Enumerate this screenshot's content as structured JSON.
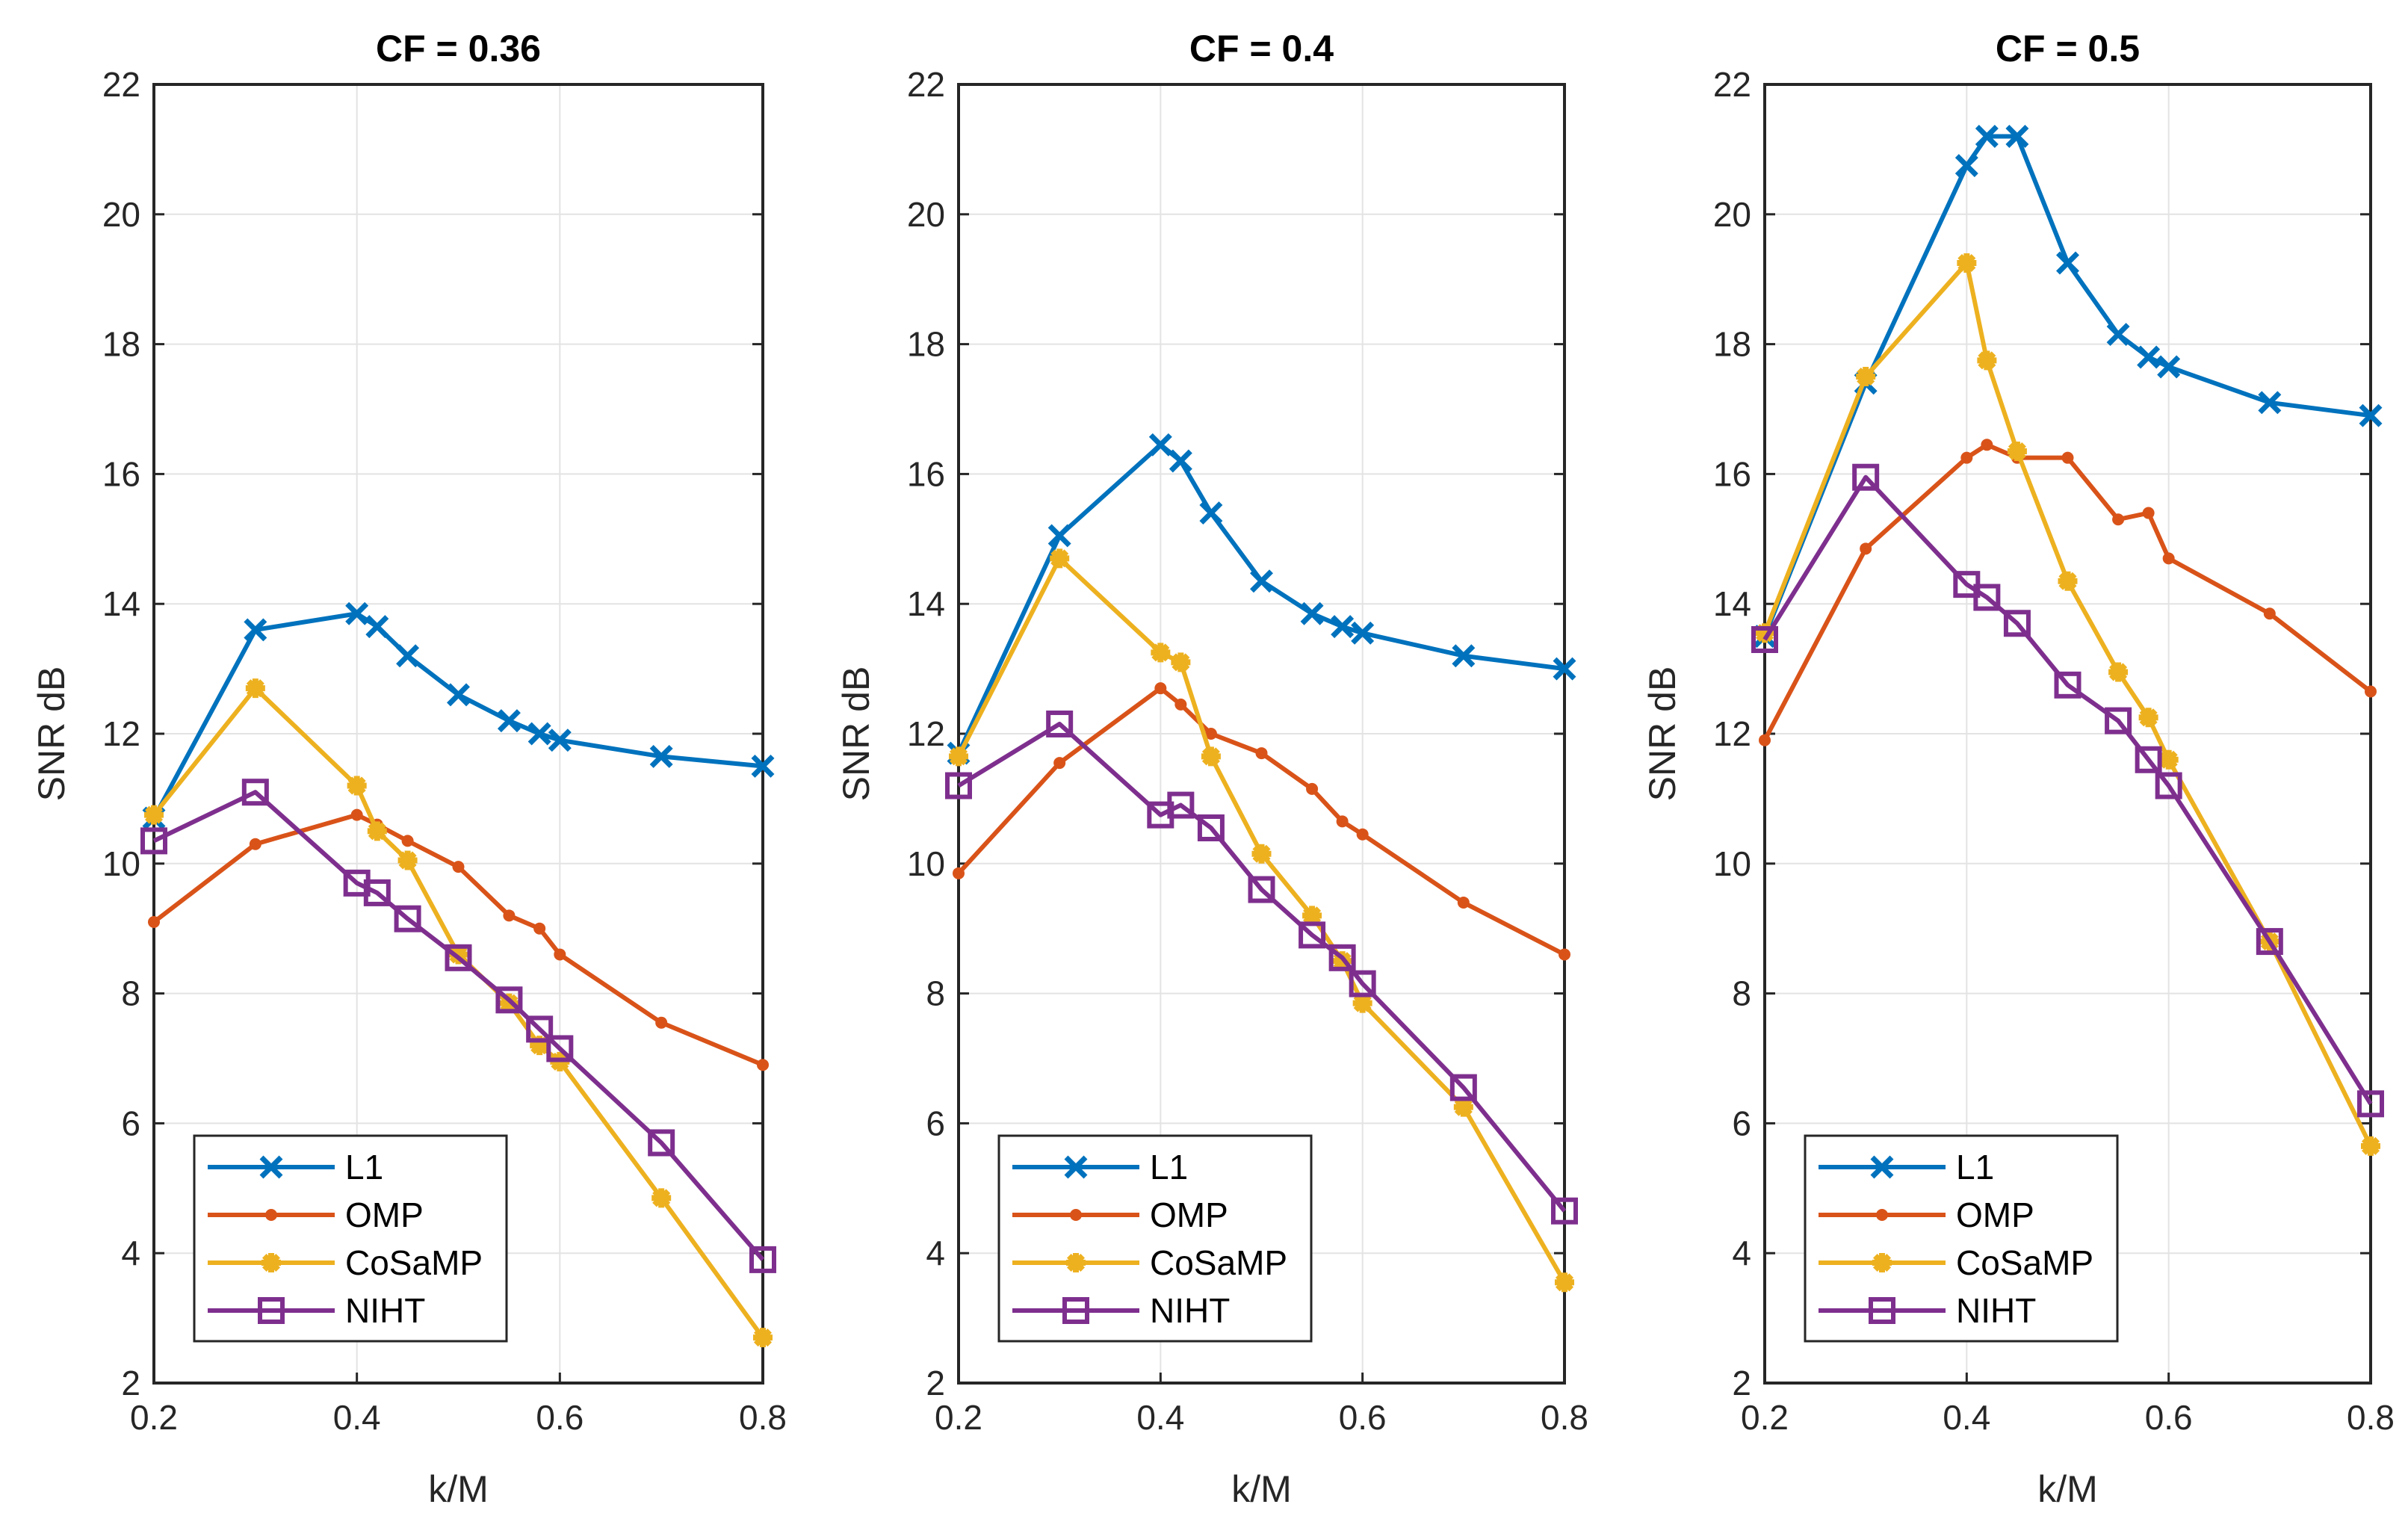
{
  "chart_data": [
    {
      "type": "line",
      "title": "CF = 0.36",
      "xlabel": "k/M",
      "ylabel": "SNR dB",
      "xlim": [
        0.2,
        0.8
      ],
      "ylim": [
        2,
        22
      ],
      "xticks": [
        "0.2",
        "0.4",
        "0.6",
        "0.8"
      ],
      "yticks": [
        "2",
        "4",
        "6",
        "8",
        "10",
        "12",
        "14",
        "16",
        "18",
        "20",
        "22"
      ],
      "grid": true,
      "legend_position": "bottom-left",
      "x": [
        0.2,
        0.3,
        0.4,
        0.42,
        0.45,
        0.5,
        0.55,
        0.58,
        0.6,
        0.7,
        0.8
      ],
      "series": [
        {
          "name": "L1",
          "marker": "x",
          "color": "#0072BD",
          "values": [
            10.7,
            13.6,
            13.85,
            13.65,
            13.2,
            12.6,
            12.2,
            12.0,
            11.9,
            11.65,
            11.5
          ]
        },
        {
          "name": "OMP",
          "marker": "dot",
          "color": "#D95319",
          "values": [
            9.1,
            10.3,
            10.75,
            10.6,
            10.35,
            9.95,
            9.2,
            9.0,
            8.6,
            7.55,
            6.9
          ]
        },
        {
          "name": "CoSaMP",
          "marker": "star",
          "color": "#EDB120",
          "values": [
            10.75,
            12.7,
            11.2,
            10.5,
            10.05,
            8.6,
            7.85,
            7.2,
            6.95,
            4.85,
            2.7
          ]
        },
        {
          "name": "NIHT",
          "marker": "square",
          "color": "#7E2F8E",
          "values": [
            10.35,
            11.1,
            9.7,
            9.55,
            9.15,
            8.55,
            7.9,
            7.45,
            7.15,
            5.7,
            3.9
          ]
        }
      ]
    },
    {
      "type": "line",
      "title": "CF = 0.4",
      "xlabel": "k/M",
      "ylabel": "SNR dB",
      "xlim": [
        0.2,
        0.8
      ],
      "ylim": [
        2,
        22
      ],
      "xticks": [
        "0.2",
        "0.4",
        "0.6",
        "0.8"
      ],
      "yticks": [
        "2",
        "4",
        "6",
        "8",
        "10",
        "12",
        "14",
        "16",
        "18",
        "20",
        "22"
      ],
      "grid": true,
      "legend_position": "bottom-left",
      "x": [
        0.2,
        0.3,
        0.4,
        0.42,
        0.45,
        0.5,
        0.55,
        0.58,
        0.6,
        0.7,
        0.8
      ],
      "series": [
        {
          "name": "L1",
          "marker": "x",
          "color": "#0072BD",
          "values": [
            11.7,
            15.05,
            16.45,
            16.2,
            15.4,
            14.35,
            13.85,
            13.65,
            13.55,
            13.2,
            13.0
          ]
        },
        {
          "name": "OMP",
          "marker": "dot",
          "color": "#D95319",
          "values": [
            9.85,
            11.55,
            12.7,
            12.45,
            12.0,
            11.7,
            11.15,
            10.65,
            10.45,
            9.4,
            8.6
          ]
        },
        {
          "name": "CoSaMP",
          "marker": "star",
          "color": "#EDB120",
          "values": [
            11.65,
            14.7,
            13.25,
            13.1,
            11.65,
            10.15,
            9.2,
            8.5,
            7.85,
            6.25,
            3.55
          ]
        },
        {
          "name": "NIHT",
          "marker": "square",
          "color": "#7E2F8E",
          "values": [
            11.2,
            12.15,
            10.75,
            10.9,
            10.55,
            9.6,
            8.9,
            8.55,
            8.15,
            6.55,
            4.65
          ]
        }
      ]
    },
    {
      "type": "line",
      "title": "CF = 0.5",
      "xlabel": "k/M",
      "ylabel": "SNR dB",
      "xlim": [
        0.2,
        0.8
      ],
      "ylim": [
        2,
        22
      ],
      "xticks": [
        "0.2",
        "0.4",
        "0.6",
        "0.8"
      ],
      "yticks": [
        "2",
        "4",
        "6",
        "8",
        "10",
        "12",
        "14",
        "16",
        "18",
        "20",
        "22"
      ],
      "grid": true,
      "legend_position": "bottom-left",
      "x": [
        0.2,
        0.3,
        0.4,
        0.42,
        0.45,
        0.5,
        0.55,
        0.58,
        0.6,
        0.7,
        0.8
      ],
      "series": [
        {
          "name": "L1",
          "marker": "x",
          "color": "#0072BD",
          "values": [
            13.5,
            17.4,
            20.75,
            21.2,
            21.2,
            19.25,
            18.15,
            17.8,
            17.65,
            17.1,
            16.9
          ]
        },
        {
          "name": "OMP",
          "marker": "dot",
          "color": "#D95319",
          "values": [
            11.9,
            14.85,
            16.25,
            16.45,
            16.25,
            16.25,
            15.3,
            15.4,
            14.7,
            13.85,
            12.65
          ]
        },
        {
          "name": "CoSaMP",
          "marker": "star",
          "color": "#EDB120",
          "values": [
            13.55,
            17.5,
            19.25,
            17.75,
            16.35,
            14.35,
            12.95,
            12.25,
            11.6,
            8.8,
            5.65
          ]
        },
        {
          "name": "NIHT",
          "marker": "square",
          "color": "#7E2F8E",
          "values": [
            13.45,
            15.95,
            14.3,
            14.1,
            13.7,
            12.75,
            12.2,
            11.6,
            11.2,
            8.8,
            6.3
          ]
        }
      ]
    }
  ]
}
